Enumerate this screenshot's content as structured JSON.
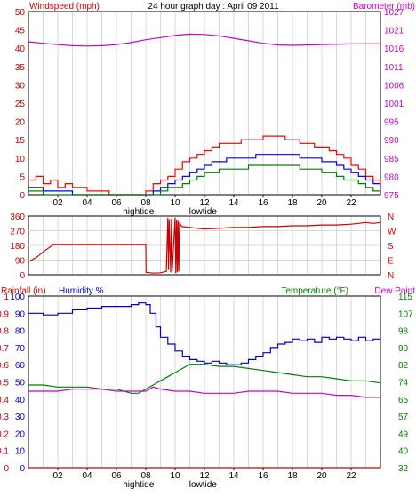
{
  "chart_data": [
    {
      "type": "line",
      "title": "24 hour graph day : April 09 2011",
      "left_axis_label": "Windspeed (mph)",
      "right_axis_label": "Barometer (mb)",
      "left_ticks": [
        "0",
        "5",
        "10",
        "15",
        "20",
        "25",
        "30",
        "35",
        "40",
        "45",
        "50"
      ],
      "left_range": [
        0,
        50
      ],
      "right_ticks": [
        "975",
        "980",
        "985",
        "990",
        "995",
        "1001",
        "1006",
        "1011",
        "1016",
        "1021",
        "1027"
      ],
      "right_range": [
        975,
        1027
      ],
      "x_ticks": [
        "02",
        "04",
        "06",
        "08",
        "10",
        "12",
        "14",
        "16",
        "18",
        "20",
        "22"
      ],
      "x_range": [
        0,
        24
      ],
      "markers": [
        "hightide",
        "lowtide"
      ],
      "colors": {
        "gust": "#ff0000",
        "avg": "#0000ff",
        "wind": "#008000",
        "barometer": "#cc00cc",
        "axis_left": "#cc0000",
        "axis_right": "#cc00cc"
      },
      "series": [
        {
          "key": "barometer",
          "axis": "right",
          "x": [
            0,
            1,
            2,
            3,
            4,
            5,
            6,
            7,
            8,
            9,
            10,
            11,
            12,
            13,
            14,
            15,
            16,
            17,
            18,
            19,
            20,
            21,
            22,
            23,
            24
          ],
          "y": [
            1018.4,
            1018,
            1017.6,
            1017.3,
            1017.2,
            1017.3,
            1017.6,
            1018.2,
            1019,
            1019.6,
            1020.2,
            1020.6,
            1020.5,
            1020.1,
            1019.4,
            1018.7,
            1018,
            1017.5,
            1017.4,
            1017.5,
            1017.6,
            1017.7,
            1017.8,
            1017.8,
            1017.8
          ]
        },
        {
          "key": "gust",
          "axis": "left",
          "x": [
            0,
            0.5,
            1,
            1.5,
            2,
            2.5,
            3,
            3.5,
            4,
            4.5,
            5,
            5.5,
            6,
            6.5,
            7,
            7.5,
            8,
            8.5,
            9,
            9.5,
            10,
            10.5,
            11,
            11.5,
            12,
            12.5,
            13,
            13.5,
            14,
            14.5,
            15,
            15.5,
            16,
            16.5,
            17,
            17.5,
            18,
            18.5,
            19,
            19.5,
            20,
            20.5,
            21,
            21.5,
            22,
            22.5,
            23,
            23.5,
            24
          ],
          "y": [
            4,
            5,
            3,
            4,
            2,
            3,
            2,
            2,
            1,
            1,
            1,
            0,
            0,
            0,
            0,
            0,
            1,
            3,
            4,
            5,
            7,
            9,
            10,
            11,
            12,
            13,
            14,
            14,
            14,
            15,
            15,
            15,
            16,
            16,
            16,
            15,
            15,
            14,
            14,
            13,
            13,
            12,
            11,
            10,
            8,
            7,
            5,
            4,
            3
          ]
        },
        {
          "key": "avg",
          "axis": "left",
          "x": [
            0,
            1,
            2,
            3,
            4,
            5,
            6,
            7,
            8,
            8.5,
            9,
            9.5,
            10,
            10.5,
            11,
            11.5,
            12,
            12.5,
            13,
            13.5,
            14,
            14.5,
            15,
            15.5,
            16,
            16.5,
            17,
            17.5,
            18,
            18.5,
            19,
            19.5,
            20,
            20.5,
            21,
            21.5,
            22,
            22.5,
            23,
            23.5,
            24
          ],
          "y": [
            2,
            1,
            1,
            0,
            0,
            0,
            0,
            0,
            0,
            1,
            2,
            3,
            4,
            5,
            6,
            7,
            8,
            9,
            9,
            10,
            10,
            10,
            10,
            11,
            11,
            11,
            11,
            11,
            11,
            10,
            10,
            10,
            9,
            9,
            8,
            7,
            6,
            5,
            4,
            3,
            2
          ]
        },
        {
          "key": "wind",
          "axis": "left",
          "x": [
            0,
            1,
            2,
            3,
            4,
            5,
            6,
            7,
            8,
            8.5,
            9,
            9.5,
            10,
            10.5,
            11,
            11.5,
            12,
            12.5,
            13,
            13.5,
            14,
            14.5,
            15,
            15.5,
            16,
            16.5,
            17,
            17.5,
            18,
            18.5,
            19,
            19.5,
            20,
            20.5,
            21,
            21.5,
            22,
            22.5,
            23,
            23.5,
            24
          ],
          "y": [
            1,
            0,
            0,
            0,
            0,
            0,
            0,
            0,
            0,
            0,
            1,
            2,
            2,
            3,
            4,
            5,
            6,
            6,
            7,
            7,
            7,
            7,
            8,
            8,
            8,
            8,
            8,
            8,
            8,
            7,
            7,
            7,
            6,
            6,
            5,
            4,
            4,
            3,
            2,
            1,
            1
          ]
        }
      ]
    },
    {
      "type": "line",
      "left_ticks": [
        "0",
        "90",
        "180",
        "270",
        "360"
      ],
      "left_range": [
        0,
        360
      ],
      "right_ticks": [
        "N",
        "E",
        "S",
        "W",
        "N"
      ],
      "colors": {
        "direction": "#cc0000",
        "axis_left": "#cc0000",
        "axis_right": "#cc0000"
      },
      "series": [
        {
          "key": "direction",
          "x": [
            0,
            0.3,
            0.6,
            1,
            1.3,
            1.7,
            2,
            3,
            4,
            5,
            6,
            7,
            8,
            8.02,
            8.5,
            9,
            9.4,
            9.5,
            9.55,
            9.6,
            9.7,
            9.75,
            9.8,
            10,
            10.05,
            10.1,
            10.15,
            10.2,
            10.25,
            10.3,
            10.4,
            10.5,
            11,
            11.5,
            12,
            13,
            14,
            15,
            16,
            17,
            18,
            19,
            20,
            21,
            22,
            22.5,
            23,
            23.5,
            24
          ],
          "y": [
            80,
            95,
            110,
            140,
            160,
            185,
            185,
            185,
            185,
            185,
            185,
            185,
            185,
            15,
            10,
            12,
            20,
            350,
            30,
            340,
            15,
            345,
            20,
            350,
            10,
            335,
            15,
            330,
            20,
            320,
            300,
            295,
            290,
            285,
            280,
            285,
            290,
            290,
            295,
            295,
            300,
            300,
            305,
            305,
            310,
            315,
            320,
            315,
            320
          ]
        }
      ]
    },
    {
      "type": "line",
      "left_axis_label": "Rainfall (in)",
      "humidity_label": "Humidity %",
      "right_axis_label": "Temperature (°F)",
      "dew_point_label": "Dew Point",
      "left_ticks": [
        "0",
        "0.1",
        "0.2",
        "0.3",
        "0.4",
        "0.5",
        "0.6",
        "0.7",
        "0.8",
        "0.9",
        "1"
      ],
      "left_range": [
        0,
        1
      ],
      "humidity_ticks": [
        "0",
        "10",
        "20",
        "30",
        "40",
        "50",
        "60",
        "70",
        "80",
        "90",
        "100"
      ],
      "humidity_range": [
        0,
        100
      ],
      "right_ticks": [
        "32",
        "40",
        "49",
        "57",
        "65",
        "74",
        "82",
        "90",
        "98",
        "107",
        "115"
      ],
      "right_range": [
        32,
        115
      ],
      "x_ticks": [
        "02",
        "04",
        "06",
        "08",
        "10",
        "12",
        "14",
        "16",
        "18",
        "20",
        "22"
      ],
      "x_range": [
        0,
        24
      ],
      "markers": [
        "hightide",
        "lowtide"
      ],
      "colors": {
        "humidity": "#0000cc",
        "temperature": "#008000",
        "dew_point": "#cc00cc",
        "rainfall": "#cc0000",
        "axis_left": "#cc0000",
        "axis_right": "#008000"
      },
      "series": [
        {
          "key": "humidity",
          "axis": "humidity",
          "x": [
            0,
            1,
            2,
            3,
            4,
            5,
            6,
            7,
            7.5,
            8,
            8.3,
            8.7,
            9,
            9.5,
            10,
            10.5,
            11,
            11.5,
            12,
            12.5,
            13,
            13.5,
            14,
            14.5,
            15,
            15.5,
            16,
            16.5,
            17,
            17.5,
            18,
            18.5,
            19,
            19.5,
            20,
            20.5,
            21,
            21.5,
            22,
            22.5,
            23,
            23.5,
            24
          ],
          "y": [
            90,
            89,
            90,
            92,
            93,
            94,
            94,
            95,
            96,
            95,
            90,
            82,
            76,
            72,
            68,
            65,
            63,
            62,
            61,
            62,
            61,
            60,
            60,
            61,
            63,
            65,
            67,
            70,
            72,
            73,
            75,
            74,
            75,
            73,
            76,
            75,
            76,
            75,
            74,
            76,
            74,
            75,
            74
          ]
        },
        {
          "key": "temperature",
          "axis": "right",
          "x": [
            0,
            1,
            2,
            3,
            4,
            5,
            6,
            7,
            7.5,
            8,
            8.5,
            9,
            9.5,
            10,
            10.5,
            11,
            11.5,
            12,
            13,
            14,
            15,
            16,
            17,
            18,
            19,
            20,
            21,
            22,
            23,
            24
          ],
          "y": [
            72,
            72,
            71,
            71,
            71,
            70,
            70,
            68,
            68,
            70,
            72,
            74,
            76,
            78,
            80,
            82,
            82,
            82,
            81,
            81,
            80,
            79,
            78,
            77,
            76,
            76,
            75,
            74,
            74,
            73
          ]
        },
        {
          "key": "dew_point",
          "axis": "right",
          "x": [
            0,
            1,
            2,
            3,
            4,
            5,
            6,
            7,
            8,
            8.5,
            9,
            10,
            11,
            12,
            13,
            14,
            15,
            16,
            17,
            18,
            19,
            20,
            21,
            22,
            23,
            24
          ],
          "y": [
            69,
            69,
            69,
            70,
            70,
            70,
            69,
            69,
            69,
            71,
            70,
            69,
            69,
            68,
            68,
            68,
            69,
            69,
            69,
            68,
            68,
            68,
            67,
            67,
            66,
            66
          ]
        },
        {
          "key": "rainfall",
          "axis": "left",
          "x": [
            0,
            24
          ],
          "y": [
            0,
            0
          ]
        }
      ]
    }
  ]
}
